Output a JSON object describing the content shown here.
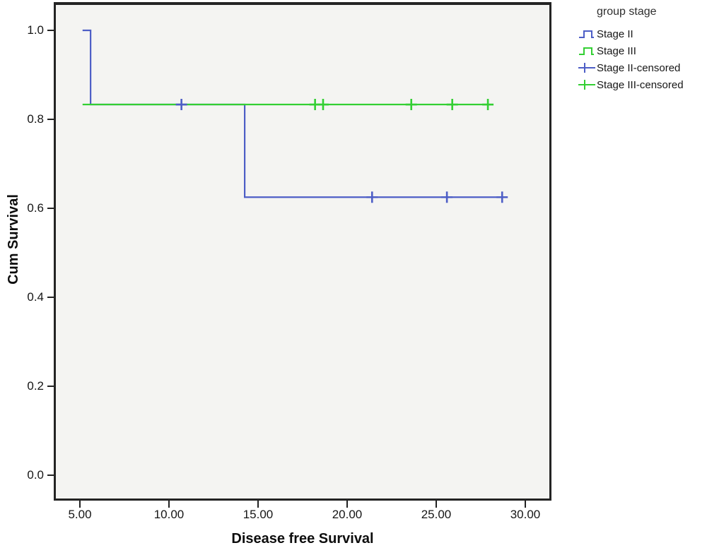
{
  "figure": {
    "y_axis": {
      "label": "Cum Survival",
      "ticks": [
        "0.0",
        "0.2",
        "0.4",
        "0.6",
        "0.8",
        "1.0"
      ]
    },
    "x_axis": {
      "label": "Disease free Survival",
      "ticks": [
        "5.00",
        "10.00",
        "15.00",
        "20.00",
        "25.00",
        "30.00"
      ]
    },
    "legend": {
      "title": "group stage",
      "items": [
        {
          "label": "Stage II",
          "color": "#4d5ec6",
          "icon": "step-icon"
        },
        {
          "label": "Stage III",
          "color": "#33cf33",
          "icon": "step-icon"
        },
        {
          "label": "Stage II-censored",
          "color": "#4d5ec6",
          "icon": "censor-icon"
        },
        {
          "label": "Stage III-censored",
          "color": "#33cf33",
          "icon": "censor-icon"
        }
      ]
    }
  },
  "chart_data": {
    "type": "line",
    "subtype": "kaplan-meier-step",
    "title": "",
    "xlabel": "Disease free Survival",
    "ylabel": "Cum Survival",
    "xlim": [
      3.5,
      31.4
    ],
    "ylim": [
      -0.05,
      1.06
    ],
    "x_ticks": [
      5,
      10,
      15,
      20,
      25,
      30
    ],
    "y_ticks": [
      0.0,
      0.2,
      0.4,
      0.6,
      0.8,
      1.0
    ],
    "grid": false,
    "legend_position": "outside-top-right",
    "legend_title": "group stage",
    "series": [
      {
        "name": "Stage II",
        "color": "#4d5ec6",
        "style": "step",
        "points": [
          [
            5.15,
            1.0
          ],
          [
            5.6,
            1.0
          ],
          [
            5.6,
            0.8333
          ],
          [
            14.25,
            0.8333
          ],
          [
            14.25,
            0.625
          ],
          [
            28.8,
            0.625
          ]
        ]
      },
      {
        "name": "Stage III",
        "color": "#33cf33",
        "style": "step",
        "points": [
          [
            5.15,
            0.8333
          ],
          [
            28.0,
            0.8333
          ]
        ]
      },
      {
        "name": "Stage II-censored",
        "color": "#4d5ec6",
        "style": "censor-marks",
        "points": [
          [
            10.7,
            0.8333
          ],
          [
            21.4,
            0.625
          ],
          [
            25.6,
            0.625
          ],
          [
            28.7,
            0.625
          ]
        ]
      },
      {
        "name": "Stage III-censored",
        "color": "#33cf33",
        "style": "censor-marks",
        "points": [
          [
            18.2,
            0.8333
          ],
          [
            18.65,
            0.8333
          ],
          [
            23.6,
            0.8333
          ],
          [
            25.9,
            0.8333
          ],
          [
            27.9,
            0.8333
          ]
        ]
      }
    ]
  }
}
